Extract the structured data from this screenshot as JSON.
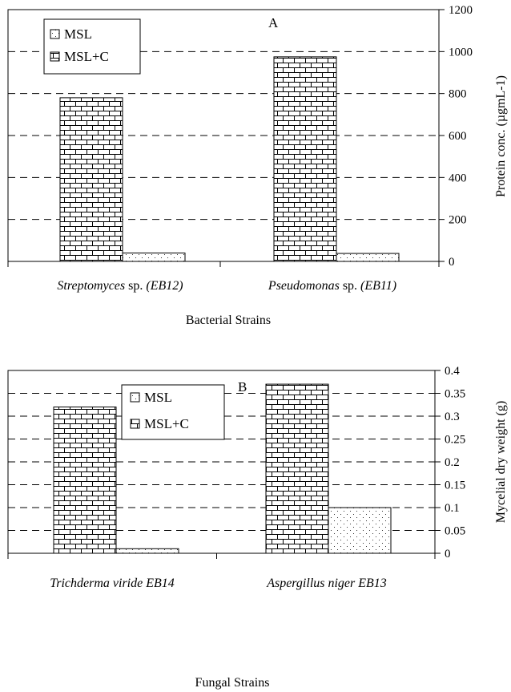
{
  "chart_data": [
    {
      "type": "bar",
      "panel_label": "A",
      "categories": [
        "Streptomyces sp. (EB12)",
        "Pseudomonas sp. (EB11)"
      ],
      "category_parts": [
        {
          "italic": "Streptomyces",
          "normal": " sp. ",
          "italic2": "(EB12)"
        },
        {
          "italic": "Pseudomonas",
          "normal": " sp. ",
          "italic2": "(EB11)"
        }
      ],
      "series": [
        {
          "name": "MSL",
          "values": [
            40,
            38
          ],
          "pattern": "dots"
        },
        {
          "name": "MSL+C",
          "values": [
            780,
            975
          ],
          "pattern": "brick"
        }
      ],
      "xlabel": "Bacterial Strains",
      "ylabel": "Protein conc. (µgmL-1)",
      "ylim": [
        0,
        1200
      ],
      "yticks": [
        0,
        200,
        400,
        600,
        800,
        1000,
        1200
      ],
      "ytick_labels": [
        "0",
        "200",
        "400",
        "600",
        "800",
        "1000",
        "1200"
      ],
      "grid": true,
      "legend_position": "top-left"
    },
    {
      "type": "bar",
      "panel_label": "B",
      "categories": [
        "Trichderma viride EB14",
        "Aspergillus niger EB13"
      ],
      "category_parts": [
        {
          "italic": "Trichderma viride EB14",
          "normal": "",
          "italic2": ""
        },
        {
          "italic": "Aspergillus niger EB13",
          "normal": "",
          "italic2": ""
        }
      ],
      "series": [
        {
          "name": "MSL",
          "values": [
            0.01,
            0.1
          ],
          "pattern": "dots"
        },
        {
          "name": "MSL+C",
          "values": [
            0.32,
            0.37
          ],
          "pattern": "brick"
        }
      ],
      "xlabel": "Fungal Strains",
      "ylabel": "Mycelial dry weight (g)",
      "ylim": [
        0,
        0.4
      ],
      "yticks": [
        0,
        0.05,
        0.1,
        0.15,
        0.2,
        0.25,
        0.3,
        0.35,
        0.4
      ],
      "ytick_labels": [
        "0",
        "0.05",
        "0.1",
        "0.15",
        "0.2",
        "0.25",
        "0.3",
        "0.35",
        "0.4"
      ],
      "grid": true,
      "legend_position": "top-center"
    }
  ]
}
